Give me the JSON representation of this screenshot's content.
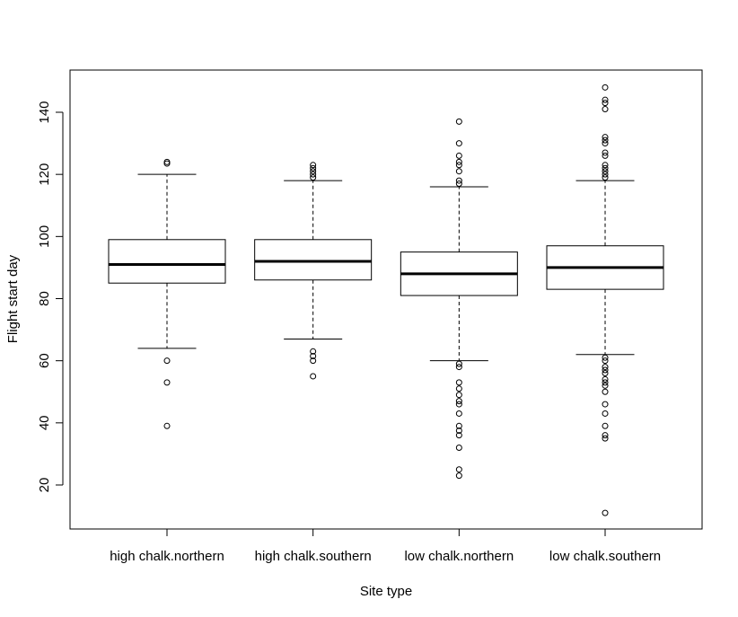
{
  "chart_data": {
    "type": "boxplot",
    "title": "",
    "xlabel": "Site type",
    "ylabel": "Flight start day",
    "ylim": [
      5,
      152
    ],
    "yticks": [
      20,
      40,
      60,
      80,
      100,
      120,
      140
    ],
    "grid": false,
    "legend": "none",
    "categories": [
      "high chalk.northern",
      "high chalk.southern",
      "low chalk.northern",
      "low chalk.southern"
    ],
    "boxes": [
      {
        "category": "high chalk.northern",
        "whisker_low": 64,
        "q1": 85,
        "median": 91,
        "q3": 99,
        "whisker_high": 120,
        "outliers": [
          39,
          53,
          60,
          123.5,
          124
        ]
      },
      {
        "category": "high chalk.southern",
        "whisker_low": 67,
        "q1": 86,
        "median": 92,
        "q3": 99,
        "whisker_high": 118,
        "outliers": [
          55,
          60,
          61.5,
          63,
          119,
          120,
          121,
          122,
          123
        ]
      },
      {
        "category": "low chalk.northern",
        "whisker_low": 60,
        "q1": 81,
        "median": 88,
        "q3": 95,
        "whisker_high": 116,
        "outliers": [
          23,
          25,
          32,
          36,
          37.5,
          39,
          43,
          46,
          47,
          49,
          51,
          53,
          58,
          59,
          117,
          118,
          121,
          123,
          124,
          126,
          130,
          137
        ]
      },
      {
        "category": "low chalk.southern",
        "whisker_low": 62,
        "q1": 83,
        "median": 90,
        "q3": 97,
        "whisker_high": 118,
        "outliers": [
          11,
          35,
          36,
          39,
          43,
          46,
          50,
          52,
          53,
          54,
          56,
          57,
          58,
          60,
          61,
          119,
          120,
          121,
          122,
          123,
          126,
          127,
          130,
          131,
          132,
          141,
          143,
          144,
          148
        ]
      }
    ],
    "colors": {
      "stroke": "#000000",
      "background": "#ffffff"
    }
  }
}
